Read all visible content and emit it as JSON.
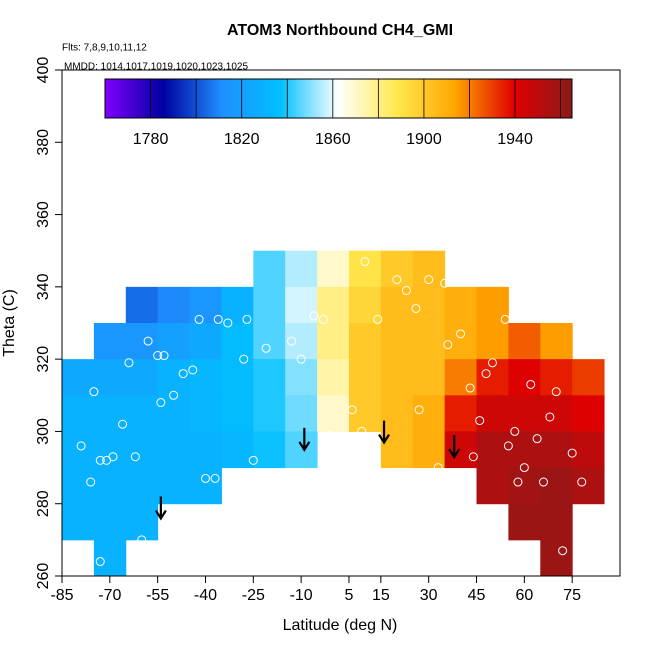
{
  "chart_data": {
    "type": "heatmap",
    "title": "ATOM3 Northbound CH4_GMI",
    "subtitle": "Flts: 7,8,9,10,11,12",
    "annotation": "MMDD: 1014,1017,1019,1020,1023,1025",
    "x_label": "Latitude (deg N)",
    "y_label": "Theta (C)",
    "xlim": [
      -85,
      90
    ],
    "ylim": [
      260,
      400
    ],
    "xticks": [
      -85,
      -70,
      -55,
      -40,
      -25,
      -10,
      5,
      15,
      30,
      45,
      60,
      75
    ],
    "yticks": [
      260,
      280,
      300,
      320,
      340,
      360,
      380,
      400
    ],
    "x": [
      -80,
      -70,
      -60,
      -50,
      -40,
      -30,
      -20,
      -10,
      0,
      10,
      20,
      30,
      40,
      50,
      60,
      70,
      80
    ],
    "y": [
      345,
      335,
      325,
      315,
      305,
      295,
      285,
      275,
      265
    ],
    "cell_width": 10,
    "cell_height": 10,
    "z": [
      [
        null,
        null,
        null,
        null,
        null,
        null,
        1845,
        1855,
        1870,
        1890,
        1900,
        1905,
        null,
        null,
        null,
        null,
        null
      ],
      [
        null,
        null,
        1805,
        1810,
        1815,
        1830,
        1845,
        1858,
        1880,
        1895,
        1905,
        1905,
        1910,
        1915,
        null,
        null,
        null
      ],
      [
        null,
        1815,
        1815,
        1820,
        1825,
        1835,
        1845,
        1855,
        1880,
        1900,
        1905,
        1905,
        1910,
        1915,
        1925,
        1915,
        null
      ],
      [
        1825,
        1825,
        1825,
        1830,
        1832,
        1835,
        1840,
        1850,
        1875,
        1900,
        1905,
        1905,
        1920,
        1935,
        1940,
        1935,
        1930
      ],
      [
        1830,
        1830,
        1830,
        1830,
        1832,
        1835,
        1840,
        1848,
        1870,
        1900,
        1905,
        1910,
        1935,
        1945,
        1945,
        1945,
        1940
      ],
      [
        1830,
        1830,
        1830,
        1830,
        1830,
        1832,
        1838,
        1845,
        null,
        null,
        1905,
        1910,
        1945,
        1955,
        1955,
        1955,
        1950
      ],
      [
        1830,
        1830,
        1830,
        1830,
        1830,
        null,
        null,
        null,
        null,
        null,
        null,
        null,
        null,
        1955,
        1958,
        1960,
        1955
      ],
      [
        1830,
        1830,
        1830,
        null,
        null,
        null,
        null,
        null,
        null,
        null,
        null,
        null,
        null,
        null,
        1960,
        1960,
        null
      ],
      [
        null,
        1830,
        null,
        null,
        null,
        null,
        null,
        null,
        null,
        null,
        null,
        null,
        null,
        null,
        null,
        1960,
        null
      ]
    ],
    "colormap": [
      "#7f00ff",
      "#0000a0",
      "#1e90ff",
      "#00bfff",
      "#ffffff",
      "#ffe84d",
      "#ffa500",
      "#e00000",
      "#8b1a1a"
    ],
    "colorbar": {
      "lim": [
        1760,
        1965
      ],
      "ticks": [
        1780,
        1820,
        1860,
        1900,
        1940
      ],
      "levels": [
        1780,
        1800,
        1820,
        1840,
        1860,
        1880,
        1900,
        1920,
        1940,
        1960
      ]
    },
    "points": {
      "x": [
        -75,
        -79,
        -76,
        -73,
        -71,
        -69,
        -66,
        -62,
        -73,
        -60,
        -64,
        -58,
        -55,
        -53,
        -54,
        -50,
        -47,
        -44,
        -42,
        -36,
        -40,
        -37,
        -33,
        -28,
        -27,
        -25,
        -21,
        -13,
        -6,
        -3,
        -1,
        6,
        9,
        10,
        14,
        20,
        23,
        26,
        27,
        30,
        35,
        36,
        40,
        43,
        44,
        46,
        48,
        50,
        55,
        57,
        58,
        60,
        62,
        64,
        66,
        68,
        70,
        72,
        75,
        78,
        54,
        33,
        -10
      ],
      "y": [
        311,
        296,
        286,
        292,
        292,
        293,
        302,
        293,
        264,
        270,
        319,
        325,
        321,
        321,
        308,
        310,
        316,
        317,
        331,
        331,
        287,
        287,
        330,
        320,
        331,
        292,
        323,
        325,
        332,
        331,
        299,
        306,
        300,
        347,
        331,
        342,
        339,
        334,
        306,
        342,
        341,
        324,
        327,
        312,
        293,
        303,
        316,
        319,
        296,
        300,
        286,
        290,
        313,
        298,
        286,
        304,
        311,
        267,
        294,
        286,
        331,
        290,
        320
      ]
    },
    "arrows": {
      "x": [
        -54,
        -9,
        16,
        38
      ],
      "y": [
        282,
        301,
        303,
        299
      ]
    }
  }
}
